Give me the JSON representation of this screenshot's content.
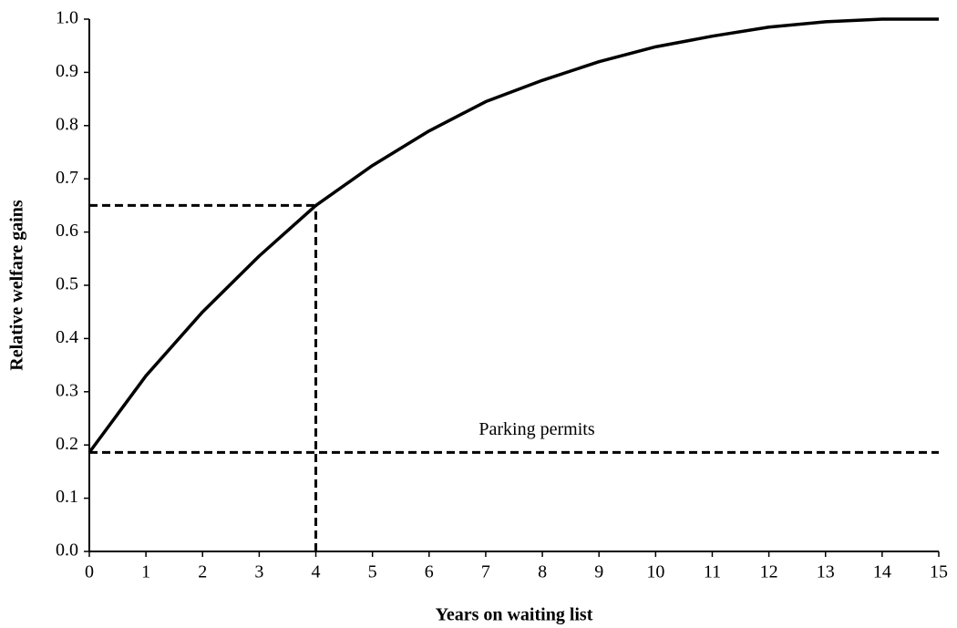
{
  "chart_data": {
    "type": "line",
    "x_label": "Years on waiting list",
    "y_label": "Relative welfare gains",
    "x": [
      0,
      1,
      2,
      3,
      4,
      5,
      6,
      7,
      8,
      9,
      10,
      11,
      12,
      13,
      14,
      15
    ],
    "values": [
      0.186,
      0.33,
      0.45,
      0.555,
      0.65,
      0.725,
      0.79,
      0.845,
      0.885,
      0.92,
      0.948,
      0.968,
      0.985,
      0.995,
      1.0,
      1.0
    ],
    "color": "#000000",
    "xlim": [
      0,
      15
    ],
    "xticks": [
      0,
      1,
      2,
      3,
      4,
      5,
      6,
      7,
      8,
      9,
      10,
      11,
      12,
      13,
      14,
      15
    ],
    "ylim": [
      0,
      1
    ],
    "yticks": [
      {
        "value": 0,
        "label": "0.0"
      },
      0.1,
      0.2,
      0.3,
      0.4,
      0.5,
      0.6,
      0.7,
      0.8,
      0.9,
      {
        "value": 1,
        "label": "1.0"
      }
    ],
    "reference": {
      "x": 4,
      "y": 0.65
    },
    "baseline": {
      "y": 0.186,
      "label": "Parking permits"
    }
  }
}
